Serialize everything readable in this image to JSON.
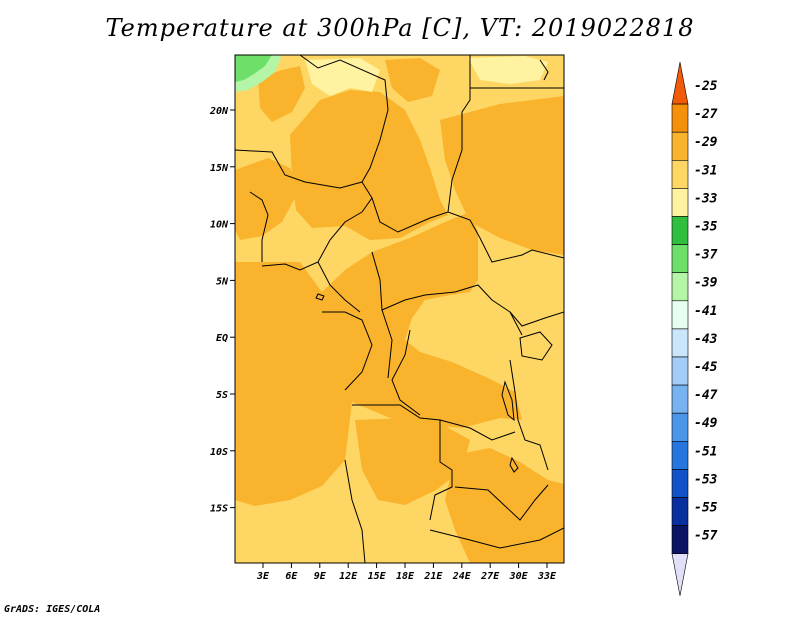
{
  "title": "Temperature at 300hPa [C], VT: 2019022818",
  "credit": "GrADS: IGES/COLA",
  "map": {
    "lat_ticks": [
      "20N",
      "15N",
      "10N",
      "5N",
      "EQ",
      "5S",
      "10S",
      "15S"
    ],
    "lon_ticks": [
      "3E",
      "6E",
      "9E",
      "12E",
      "15E",
      "18E",
      "21E",
      "24E",
      "27E",
      "30E",
      "33E"
    ]
  },
  "legend": {
    "labels": [
      "-25",
      "-27",
      "-29",
      "-31",
      "-33",
      "-35",
      "-37",
      "-39",
      "-41",
      "-43",
      "-45",
      "-47",
      "-49",
      "-51",
      "-53",
      "-55",
      "-57"
    ],
    "colors": [
      "#f05a08",
      "#f5900a",
      "#f9b32c",
      "#fdd663",
      "#fff3a2",
      "#2fbe3e",
      "#6ee06a",
      "#b5f5a8",
      "#e6fff0",
      "#c9e6fb",
      "#a3cdf7",
      "#78b3f1",
      "#4a96ea",
      "#2576de",
      "#1152c8",
      "#0a2f9e",
      "#0b1465",
      "#e0e0f8"
    ]
  }
}
